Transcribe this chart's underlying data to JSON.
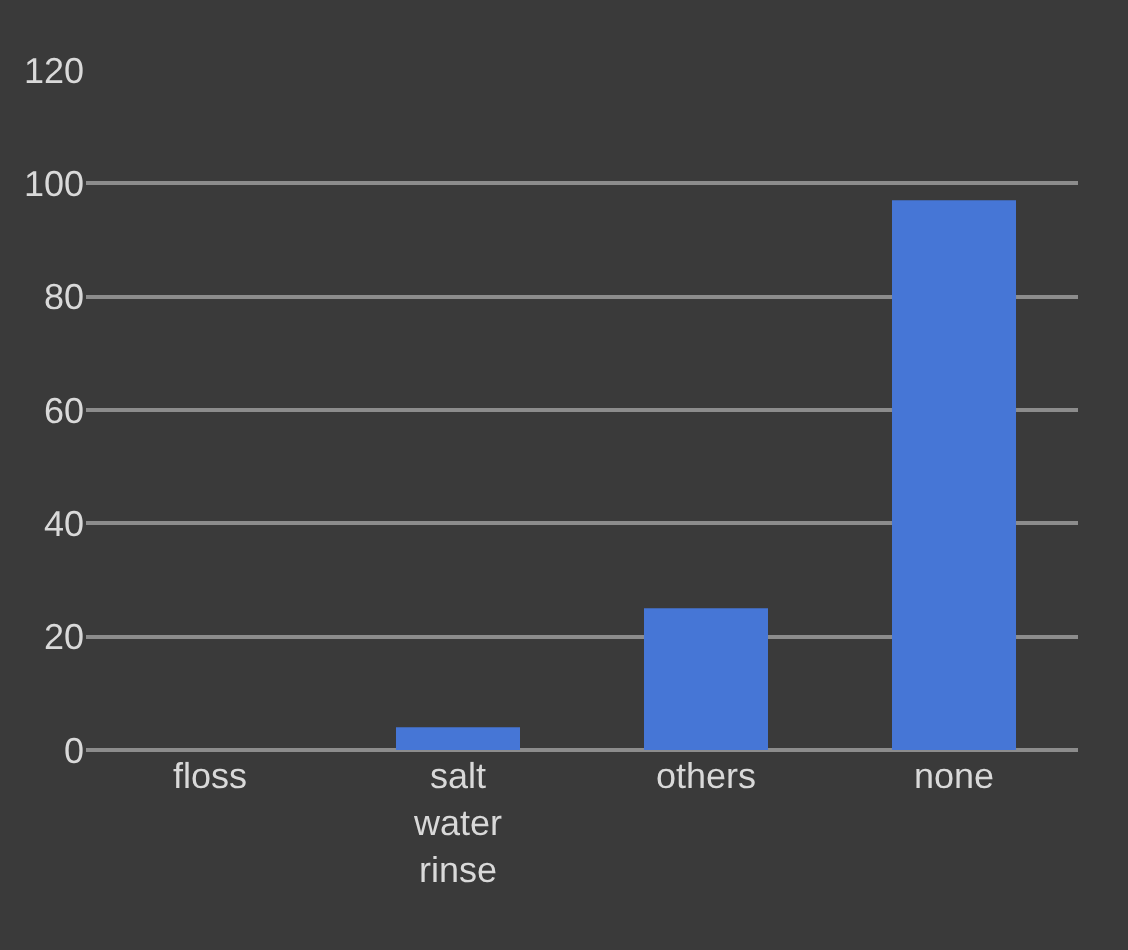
{
  "chart_data": {
    "type": "bar",
    "categories": [
      "floss",
      "salt water rinse",
      "others",
      "none"
    ],
    "values": [
      0,
      4,
      25,
      97
    ],
    "color": "#4676d6",
    "ylim": [
      0,
      120
    ],
    "yticks": [
      0,
      20,
      40,
      60,
      80,
      100,
      120
    ],
    "grid": "y"
  }
}
